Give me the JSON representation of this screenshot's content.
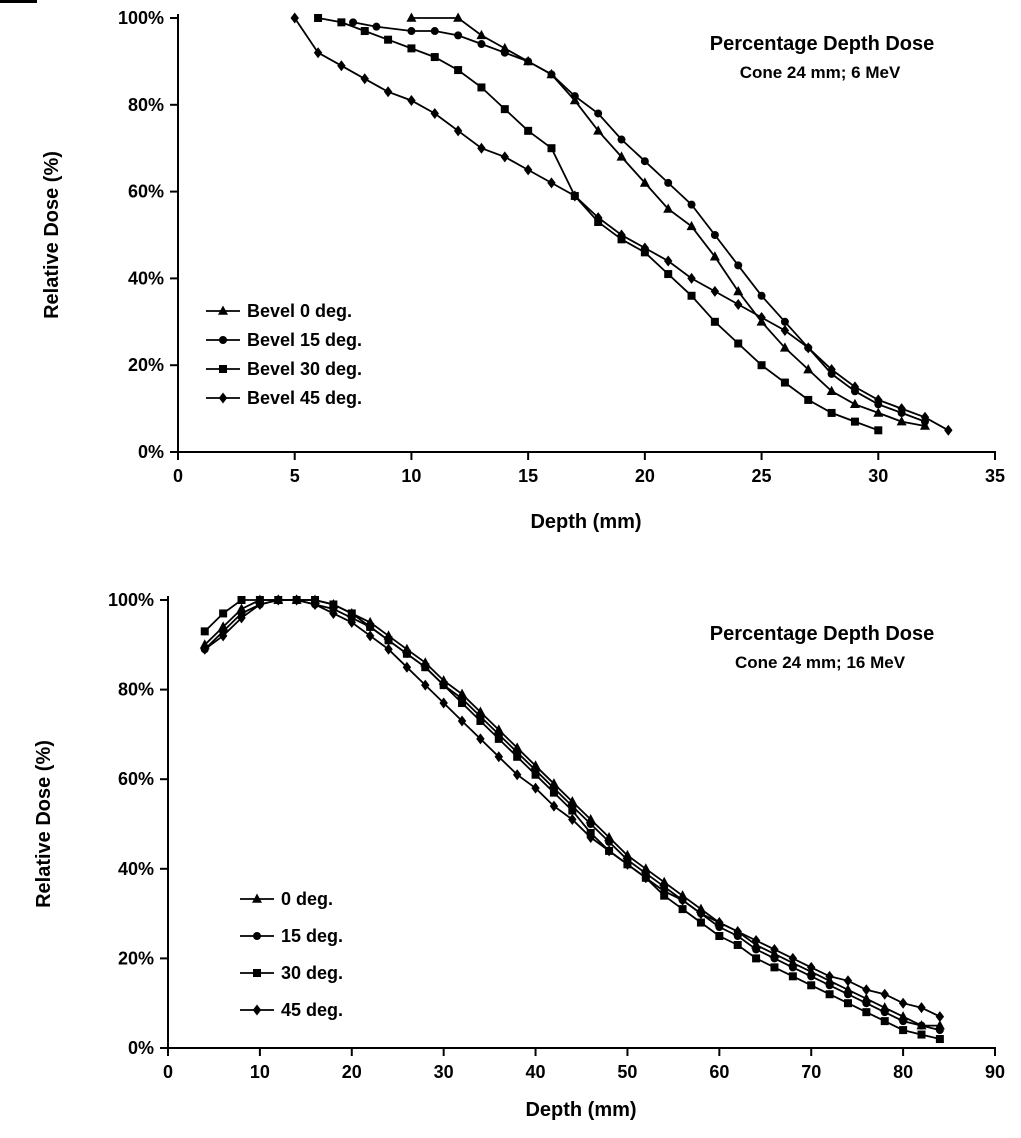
{
  "figure": {
    "background": "#ffffff",
    "ink": "#000000"
  },
  "chart_data": [
    {
      "type": "line",
      "title": "Percentage Depth Dose",
      "subtitle": "Cone 24 mm;   6 MeV",
      "xlabel": "Depth (mm)",
      "ylabel": "Relative Dose (%)",
      "xlim": [
        0,
        35
      ],
      "ylim": [
        0,
        100
      ],
      "xticks": [
        0,
        5,
        10,
        15,
        20,
        25,
        30,
        35
      ],
      "xticklabels": [
        "0",
        "5",
        "10",
        "15",
        "20",
        "25",
        "30",
        "35"
      ],
      "yticks": [
        0,
        20,
        40,
        60,
        80,
        100
      ],
      "yticklabels": [
        "0%",
        "20%",
        "40%",
        "60%",
        "80%",
        "100%"
      ],
      "grid": false,
      "legend_position": "inside-left",
      "line_color": "#000000",
      "series": [
        {
          "name": "Bevel 0 deg.",
          "marker": "triangle",
          "x": [
            10,
            12,
            13,
            14,
            15,
            16,
            17,
            18,
            19,
            20,
            21,
            22,
            23,
            24,
            25,
            26,
            27,
            28,
            29,
            30,
            31,
            32
          ],
          "y": [
            100,
            100,
            96,
            93,
            90,
            87,
            81,
            74,
            68,
            62,
            56,
            52,
            45,
            37,
            30,
            24,
            19,
            14,
            11,
            9,
            7,
            6
          ]
        },
        {
          "name": "Bevel 15 deg.",
          "marker": "circle",
          "x": [
            7.5,
            8.5,
            10,
            11,
            12,
            13,
            14,
            15,
            16,
            17,
            18,
            19,
            20,
            21,
            22,
            23,
            24,
            25,
            26,
            27,
            28,
            29,
            30,
            31,
            32
          ],
          "y": [
            99,
            98,
            97,
            97,
            96,
            94,
            92,
            90,
            87,
            82,
            78,
            72,
            67,
            62,
            57,
            50,
            43,
            36,
            30,
            24,
            18,
            14,
            11,
            9,
            7
          ]
        },
        {
          "name": "Bevel 30 deg.",
          "marker": "square",
          "x": [
            6,
            7,
            8,
            9,
            10,
            11,
            12,
            13,
            14,
            15,
            16,
            17,
            18,
            19,
            20,
            21,
            22,
            23,
            24,
            25,
            26,
            27,
            28,
            29,
            30
          ],
          "y": [
            100,
            99,
            97,
            95,
            93,
            91,
            88,
            84,
            79,
            74,
            70,
            59,
            53,
            49,
            46,
            41,
            36,
            30,
            25,
            20,
            16,
            12,
            9,
            7,
            5
          ]
        },
        {
          "name": "Bevel 45 deg.",
          "marker": "diamond",
          "x": [
            5,
            6,
            7,
            8,
            9,
            10,
            11,
            12,
            13,
            14,
            15,
            16,
            17,
            18,
            19,
            20,
            21,
            22,
            23,
            24,
            25,
            26,
            27,
            28,
            29,
            30,
            31,
            32,
            33
          ],
          "y": [
            100,
            92,
            89,
            86,
            83,
            81,
            78,
            74,
            70,
            68,
            65,
            62,
            59,
            54,
            50,
            47,
            44,
            40,
            37,
            34,
            31,
            28,
            24,
            19,
            15,
            12,
            10,
            8,
            5
          ]
        }
      ]
    },
    {
      "type": "line",
      "title": "Percentage Depth Dose",
      "subtitle": "Cone 24 mm; 16 MeV",
      "xlabel": "Depth (mm)",
      "ylabel": "Relative Dose (%)",
      "xlim": [
        0,
        90
      ],
      "ylim": [
        0,
        100
      ],
      "xticks": [
        0,
        10,
        20,
        30,
        40,
        50,
        60,
        70,
        80,
        90
      ],
      "xticklabels": [
        "0",
        "10",
        "20",
        "30",
        "40",
        "50",
        "60",
        "70",
        "80",
        "90"
      ],
      "yticks": [
        0,
        20,
        40,
        60,
        80,
        100
      ],
      "yticklabels": [
        "0%",
        "20%",
        "40%",
        "60%",
        "80%",
        "100%"
      ],
      "grid": false,
      "legend_position": "inside-left",
      "line_color": "#000000",
      "series": [
        {
          "name": "0 deg.",
          "marker": "triangle",
          "x": [
            4,
            6,
            8,
            10,
            12,
            14,
            16,
            18,
            20,
            22,
            24,
            26,
            28,
            30,
            32,
            34,
            36,
            38,
            40,
            42,
            44,
            46,
            48,
            50,
            52,
            54,
            56,
            58,
            60,
            62,
            64,
            66,
            68,
            70,
            72,
            74,
            76,
            78,
            80,
            82,
            84
          ],
          "y": [
            90,
            94,
            98,
            100,
            100,
            100,
            100,
            99,
            97,
            95,
            92,
            89,
            86,
            82,
            79,
            75,
            71,
            67,
            63,
            59,
            55,
            51,
            47,
            43,
            40,
            37,
            34,
            31,
            28,
            26,
            23,
            21,
            19,
            17,
            15,
            13,
            11,
            9,
            7,
            5,
            5
          ]
        },
        {
          "name": "15 deg.",
          "marker": "circle",
          "x": [
            4,
            6,
            8,
            10,
            12,
            14,
            16,
            18,
            20,
            22,
            24,
            26,
            28,
            30,
            32,
            34,
            36,
            38,
            40,
            42,
            44,
            46,
            48,
            50,
            52,
            54,
            56,
            58,
            60,
            62,
            64,
            66,
            68,
            70,
            72,
            74,
            76,
            78,
            80,
            82,
            84
          ],
          "y": [
            89,
            93,
            97,
            99,
            100,
            100,
            99,
            98,
            96,
            94,
            91,
            88,
            85,
            81,
            78,
            74,
            70,
            66,
            62,
            58,
            54,
            50,
            46,
            42,
            39,
            36,
            33,
            30,
            27,
            25,
            22,
            20,
            18,
            16,
            14,
            12,
            10,
            8,
            6,
            5,
            4
          ]
        },
        {
          "name": "30 deg.",
          "marker": "square",
          "x": [
            4,
            6,
            8,
            10,
            12,
            14,
            16,
            18,
            20,
            22,
            24,
            26,
            28,
            30,
            32,
            34,
            36,
            38,
            40,
            42,
            44,
            46,
            48,
            50,
            52,
            54,
            56,
            58,
            60,
            62,
            64,
            66,
            68,
            70,
            72,
            74,
            76,
            78,
            80,
            82,
            84
          ],
          "y": [
            93,
            97,
            100,
            100,
            100,
            100,
            100,
            99,
            97,
            94,
            91,
            88,
            85,
            81,
            77,
            73,
            69,
            65,
            61,
            57,
            53,
            48,
            44,
            41,
            38,
            34,
            31,
            28,
            25,
            23,
            20,
            18,
            16,
            14,
            12,
            10,
            8,
            6,
            4,
            3,
            2
          ]
        },
        {
          "name": "45 deg.",
          "marker": "diamond",
          "x": [
            4,
            6,
            8,
            10,
            12,
            14,
            16,
            18,
            20,
            22,
            24,
            26,
            28,
            30,
            32,
            34,
            36,
            38,
            40,
            42,
            44,
            46,
            48,
            50,
            52,
            54,
            56,
            58,
            60,
            62,
            64,
            66,
            68,
            70,
            72,
            74,
            76,
            78,
            80,
            82,
            84
          ],
          "y": [
            89,
            92,
            96,
            99,
            100,
            100,
            99,
            97,
            95,
            92,
            89,
            85,
            81,
            77,
            73,
            69,
            65,
            61,
            58,
            54,
            51,
            47,
            44,
            41,
            38,
            35,
            33,
            30,
            28,
            26,
            24,
            22,
            20,
            18,
            16,
            15,
            13,
            12,
            10,
            9,
            7
          ]
        }
      ]
    }
  ]
}
